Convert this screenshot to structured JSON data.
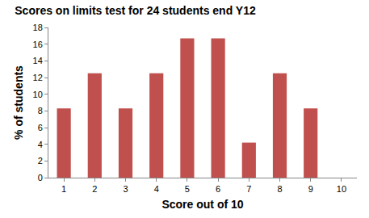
{
  "chart_data": {
    "type": "bar",
    "title": "Scores on limits test for 24 students end Y12",
    "x_label": "Score out of 10",
    "y_label": "% of students",
    "categories": [
      "1",
      "2",
      "3",
      "4",
      "5",
      "6",
      "7",
      "8",
      "9",
      "10"
    ],
    "values": [
      8.3,
      12.5,
      8.3,
      12.5,
      16.7,
      16.7,
      4.2,
      12.5,
      8.3,
      0
    ],
    "color": "#c0504d",
    "ylim": [
      0,
      18
    ],
    "yticks": [
      0,
      2,
      4,
      6,
      8,
      10,
      12,
      14,
      16,
      18
    ],
    "grid": false
  }
}
